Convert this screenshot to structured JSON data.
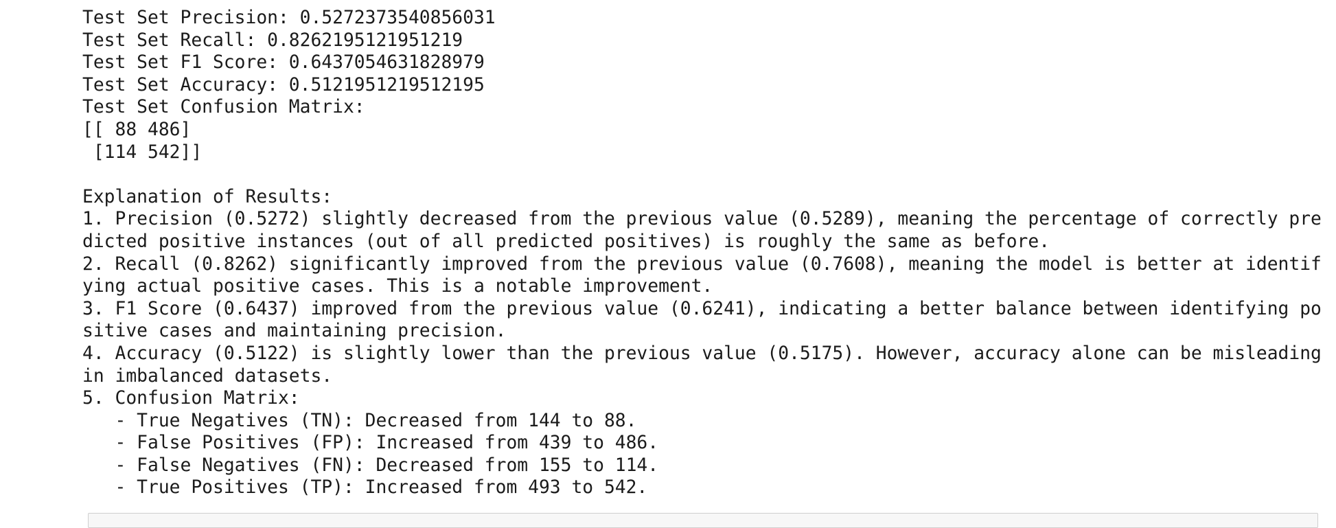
{
  "output": {
    "lines": [
      "Test Set Precision: 0.5272373540856031",
      "Test Set Recall: 0.8262195121951219",
      "Test Set F1 Score: 0.6437054631828979",
      "Test Set Accuracy: 0.5121951219512195",
      "Test Set Confusion Matrix:",
      "[[ 88 486]",
      " [114 542]]",
      "",
      "Explanation of Results:",
      "1. Precision (0.5272) slightly decreased from the previous value (0.5289), meaning the percentage of correctly pre",
      "dicted positive instances (out of all predicted positives) is roughly the same as before.",
      "2. Recall (0.8262) significantly improved from the previous value (0.7608), meaning the model is better at identif",
      "ying actual positive cases. This is a notable improvement.",
      "3. F1 Score (0.6437) improved from the previous value (0.6241), indicating a better balance between identifying po",
      "sitive cases and maintaining precision.",
      "4. Accuracy (0.5122) is slightly lower than the previous value (0.5175). However, accuracy alone can be misleading",
      "in imbalanced datasets.",
      "5. Confusion Matrix:",
      "   - True Negatives (TN): Decreased from 144 to 88.",
      "   - False Positives (FP): Increased from 439 to 486.",
      "   - False Negatives (FN): Decreased from 155 to 114.",
      "   - True Positives (TP): Increased from 493 to 542."
    ]
  }
}
